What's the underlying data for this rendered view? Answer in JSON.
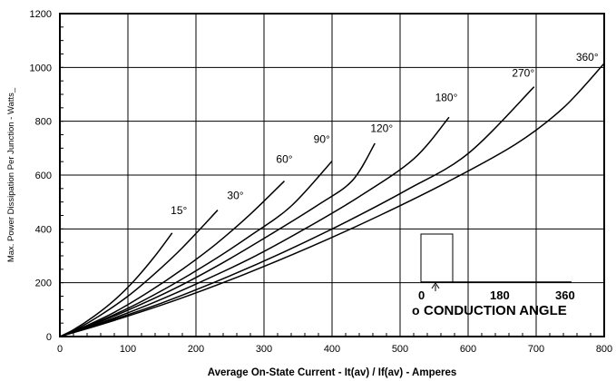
{
  "chart_data": {
    "type": "line",
    "xlabel": "Average On-State Current - It(av) / If(av) - Amperes",
    "ylabel": "Max. Power Dissipation Per Junction - Watts_",
    "xlim": [
      0,
      800
    ],
    "ylim": [
      0,
      1200
    ],
    "xticks": [
      0,
      100,
      200,
      300,
      400,
      500,
      600,
      700,
      800
    ],
    "yticks": [
      0,
      200,
      400,
      600,
      800,
      1000,
      1200
    ],
    "grid": true,
    "series": [
      {
        "name": "15°",
        "label_at": [
          175,
          455
        ],
        "points": [
          [
            0,
            0
          ],
          [
            20,
            25
          ],
          [
            50,
            75
          ],
          [
            80,
            135
          ],
          [
            110,
            210
          ],
          [
            140,
            300
          ],
          [
            165,
            385
          ]
        ]
      },
      {
        "name": "30°",
        "label_at": [
          258,
          510
        ],
        "points": [
          [
            0,
            0
          ],
          [
            25,
            28
          ],
          [
            60,
            80
          ],
          [
            100,
            150
          ],
          [
            140,
            235
          ],
          [
            180,
            330
          ],
          [
            232,
            470
          ]
        ]
      },
      {
        "name": "60°",
        "label_at": [
          330,
          645
        ],
        "points": [
          [
            0,
            0
          ],
          [
            30,
            30
          ],
          [
            80,
            90
          ],
          [
            130,
            165
          ],
          [
            180,
            250
          ],
          [
            230,
            345
          ],
          [
            280,
            455
          ],
          [
            330,
            578
          ]
        ]
      },
      {
        "name": "90°",
        "label_at": [
          385,
          720
        ],
        "points": [
          [
            0,
            0
          ],
          [
            40,
            38
          ],
          [
            100,
            105
          ],
          [
            160,
            185
          ],
          [
            220,
            275
          ],
          [
            280,
            375
          ],
          [
            340,
            485
          ],
          [
            400,
            652
          ]
        ]
      },
      {
        "name": "120°",
        "label_at": [
          473,
          760
        ],
        "points": [
          [
            0,
            0
          ],
          [
            40,
            36
          ],
          [
            100,
            98
          ],
          [
            170,
            180
          ],
          [
            240,
            275
          ],
          [
            310,
            380
          ],
          [
            380,
            490
          ],
          [
            430,
            580
          ],
          [
            463,
            718
          ]
        ]
      },
      {
        "name": "180°",
        "label_at": [
          568,
          875
        ],
        "points": [
          [
            0,
            0
          ],
          [
            50,
            42
          ],
          [
            120,
            108
          ],
          [
            200,
            195
          ],
          [
            280,
            290
          ],
          [
            360,
            400
          ],
          [
            440,
            520
          ],
          [
            520,
            660
          ],
          [
            572,
            815
          ]
        ]
      },
      {
        "name": "270°",
        "label_at": [
          681,
          965
        ],
        "points": [
          [
            0,
            0
          ],
          [
            60,
            48
          ],
          [
            150,
            125
          ],
          [
            240,
            215
          ],
          [
            330,
            315
          ],
          [
            420,
            425
          ],
          [
            510,
            545
          ],
          [
            600,
            680
          ],
          [
            697,
            928
          ]
        ]
      },
      {
        "name": "360°",
        "label_at": [
          775,
          1025
        ],
        "points": [
          [
            0,
            0
          ],
          [
            70,
            52
          ],
          [
            170,
            135
          ],
          [
            270,
            230
          ],
          [
            370,
            335
          ],
          [
            470,
            450
          ],
          [
            570,
            575
          ],
          [
            670,
            715
          ],
          [
            740,
            850
          ],
          [
            800,
            1015
          ]
        ]
      }
    ],
    "inset": {
      "scale_labels": [
        "0",
        "180",
        "360"
      ],
      "caption": "CONDUCTION ANGLE",
      "caption_prefix_glyph": "o"
    }
  }
}
